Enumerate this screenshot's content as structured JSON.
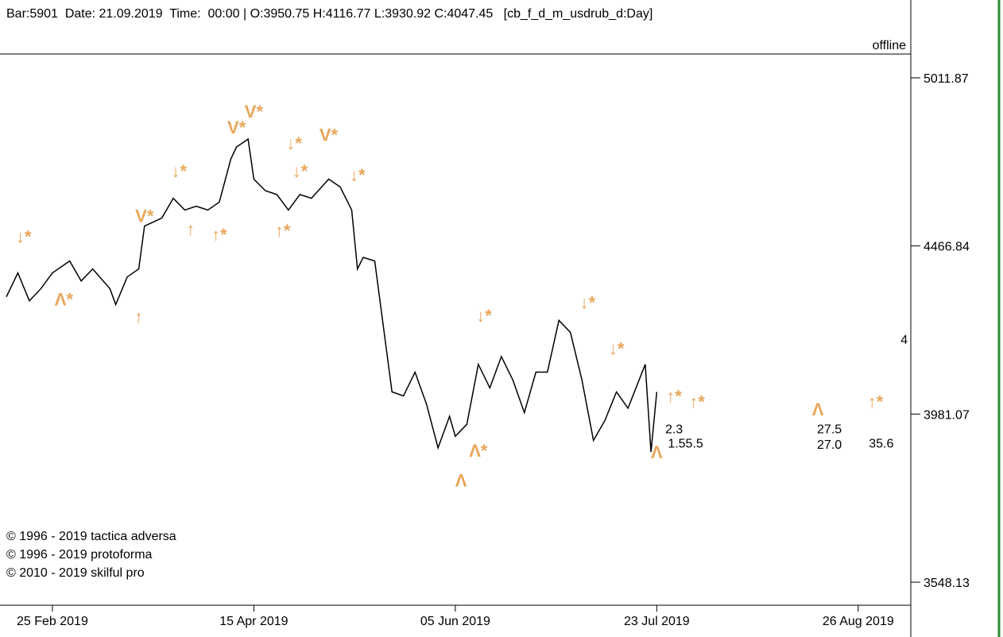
{
  "chart_data": {
    "type": "line",
    "header": "Bar:5901  Date: 21.09.2019  Time:  00:00 | O:3950.75 H:4116.77 L:3930.92 C:4047.45   [cb_f_d_m_usdrub_d:Day]",
    "status": "offline",
    "copyright": [
      "© 1996 - 2019 tactica adversa",
      "© 1996 - 2019 protoforma",
      "© 2010 - 2019 skilful pro"
    ],
    "log_scale": true,
    "ylim": [
      3492.6,
      5088.7
    ],
    "yticks": [
      5011.87,
      4466.84,
      3981.07,
      3548.13
    ],
    "xlim": [
      0,
      157
    ],
    "xticks": [
      {
        "value": 8,
        "label": "25 Feb 2019"
      },
      {
        "value": 43,
        "label": "15 Apr 2019"
      },
      {
        "value": 78,
        "label": "05 Jun 2019"
      },
      {
        "value": 113,
        "label": "23 Jul 2019"
      },
      {
        "value": 148,
        "label": "26 Aug 2019"
      }
    ],
    "series": [
      {
        "color": "#000000",
        "x": [
          0,
          2,
          4,
          6,
          8,
          11,
          13,
          15,
          18,
          19,
          21,
          23,
          24,
          27,
          29,
          31,
          33,
          35,
          37,
          39,
          40,
          42,
          43,
          45,
          47,
          49,
          51,
          53,
          56,
          58,
          60,
          61,
          62,
          64,
          67,
          69,
          71,
          73,
          75,
          77,
          78,
          80,
          82,
          84,
          86,
          88,
          90,
          92,
          94,
          96,
          98,
          100,
          102,
          104,
          106,
          108,
          111,
          112,
          113
        ],
        "values": [
          4314,
          4385,
          4302,
          4338,
          4385,
          4421,
          4361,
          4397,
          4338,
          4291,
          4373,
          4397,
          4528,
          4553,
          4615,
          4578,
          4590,
          4578,
          4603,
          4741,
          4780,
          4806,
          4676,
          4639,
          4627,
          4578,
          4627,
          4615,
          4676,
          4651,
          4578,
          4397,
          4432,
          4421,
          4042,
          4031,
          4097,
          4008,
          3890,
          3975,
          3921,
          3953,
          4119,
          4053,
          4141,
          4075,
          3985,
          4097,
          4097,
          4245,
          4210,
          4075,
          3910,
          3964,
          4042,
          3997,
          4119,
          3879,
          4042
        ]
      }
    ],
    "marker_color": "#e8a65a",
    "markers": [
      {
        "label": "↓*",
        "x": 3,
        "y": 4496
      },
      {
        "label": "Λ*",
        "x": 10,
        "y": 4307
      },
      {
        "label": "↑",
        "x": 23,
        "y": 4256
      },
      {
        "label": "V*",
        "x": 24,
        "y": 4560
      },
      {
        "label": "↓*",
        "x": 30,
        "y": 4703
      },
      {
        "label": "↑",
        "x": 32,
        "y": 4520
      },
      {
        "label": "↑*",
        "x": 37,
        "y": 4503
      },
      {
        "label": "V*",
        "x": 40,
        "y": 4846
      },
      {
        "label": "V*",
        "x": 43,
        "y": 4899
      },
      {
        "label": "↓*",
        "x": 50,
        "y": 4793
      },
      {
        "label": "V*",
        "x": 56,
        "y": 4820
      },
      {
        "label": "↓*",
        "x": 51,
        "y": 4703
      },
      {
        "label": "↓*",
        "x": 61,
        "y": 4690
      },
      {
        "label": "↑*",
        "x": 48,
        "y": 4515
      },
      {
        "label": "↓*",
        "x": 83,
        "y": 4260
      },
      {
        "label": "Λ*",
        "x": 82,
        "y": 3883
      },
      {
        "label": "Λ",
        "x": 79,
        "y": 3805
      },
      {
        "label": "↓*",
        "x": 101,
        "y": 4298
      },
      {
        "label": "↓*",
        "x": 106,
        "y": 4164
      },
      {
        "label": "↑*",
        "x": 116,
        "y": 4031
      },
      {
        "label": "↑*",
        "x": 120,
        "y": 4015
      },
      {
        "label": "Λ",
        "x": 113,
        "y": 3879
      },
      {
        "label": "Λ",
        "x": 141,
        "y": 3995
      },
      {
        "label": "↑*",
        "x": 151,
        "y": 4015
      }
    ],
    "labels": [
      {
        "text": "2.3",
        "x": 116,
        "y": 3942
      },
      {
        "text": "1.55.5",
        "x": 118,
        "y": 3904
      },
      {
        "text": "27.5",
        "x": 143,
        "y": 3942
      },
      {
        "text": "27.0",
        "x": 143,
        "y": 3900
      },
      {
        "text": "35.6",
        "x": 152,
        "y": 3904
      },
      {
        "text": "4",
        "x": 156,
        "y": 4191
      }
    ]
  }
}
